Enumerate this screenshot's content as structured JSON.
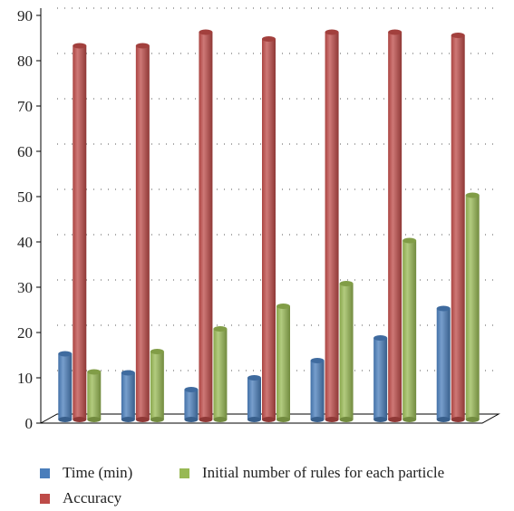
{
  "chart_data": {
    "type": "bar",
    "categories": [
      "",
      "",
      "",
      "",
      "",
      "",
      ""
    ],
    "series": [
      {
        "name": "Time (min)",
        "values": [
          14.5,
          10.3,
          6.6,
          9.2,
          13.0,
          18.0,
          24.5
        ],
        "color": "#4a7ebb"
      },
      {
        "name": "Accuracy",
        "values": [
          82.5,
          82.5,
          85.5,
          84.0,
          85.5,
          85.5,
          84.8
        ],
        "color": "#be4b48"
      },
      {
        "name": "Initial number of rules for each particle",
        "values": [
          10.5,
          15.0,
          20.0,
          25.0,
          30.0,
          39.5,
          49.5
        ],
        "color": "#98b954"
      }
    ],
    "ylim": [
      0,
      90
    ],
    "yticks": [
      0,
      10,
      20,
      30,
      40,
      50,
      60,
      70,
      80,
      90
    ],
    "grid": true,
    "legend_position": "bottom"
  }
}
